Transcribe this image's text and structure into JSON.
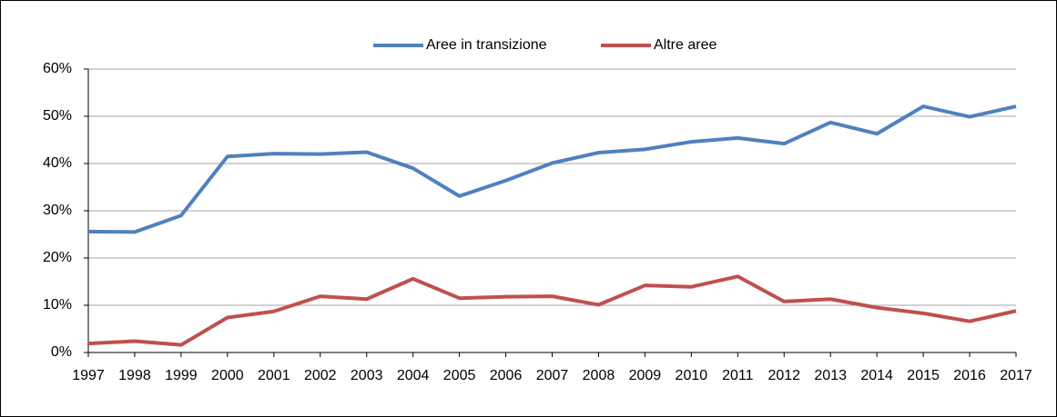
{
  "chart_data": {
    "type": "line",
    "categories": [
      "1997",
      "1998",
      "1999",
      "2000",
      "2001",
      "2002",
      "2003",
      "2004",
      "2005",
      "2006",
      "2007",
      "2008",
      "2009",
      "2010",
      "2011",
      "2012",
      "2013",
      "2014",
      "2015",
      "2016",
      "2017"
    ],
    "series": [
      {
        "name": "Aree in transizione",
        "color": "#4f81bd",
        "values": [
          25.6,
          25.5,
          29.0,
          41.5,
          42.1,
          42.0,
          42.4,
          39.0,
          33.1,
          36.4,
          40.1,
          42.3,
          43.0,
          44.6,
          45.4,
          44.2,
          48.7,
          46.3,
          52.1,
          49.9,
          52.1
        ]
      },
      {
        "name": "Altre aree",
        "color": "#c0504d",
        "values": [
          1.9,
          2.4,
          1.6,
          7.4,
          8.7,
          11.9,
          11.3,
          15.6,
          11.5,
          11.8,
          11.9,
          10.1,
          14.2,
          13.9,
          16.1,
          10.8,
          11.3,
          9.5,
          8.3,
          6.6,
          8.8
        ]
      }
    ],
    "ylim": [
      0,
      60
    ],
    "yticks": [
      {
        "value": 0,
        "label": "0%"
      },
      {
        "value": 10,
        "label": "10%"
      },
      {
        "value": 20,
        "label": "20%"
      },
      {
        "value": 30,
        "label": "30%"
      },
      {
        "value": 40,
        "label": "40%"
      },
      {
        "value": 50,
        "label": "50%"
      },
      {
        "value": 60,
        "label": "60%"
      }
    ],
    "grid": true,
    "legend": "top"
  }
}
